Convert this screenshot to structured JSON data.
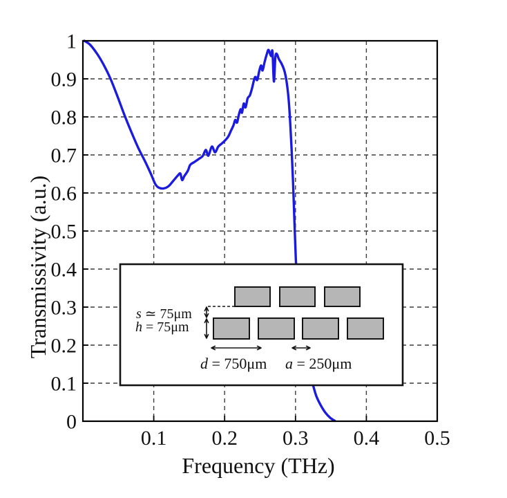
{
  "background": "#ffffff",
  "colors": {
    "curve": "#1b1be0",
    "grid": "#3c3c3c",
    "axis": "#000000",
    "inset_fill": "#ffffff",
    "inset_bar_fill": "#b6b6b6",
    "inset_stroke": "#141414"
  },
  "axes": {
    "x": {
      "label": "Frequency (THz)",
      "min": 0,
      "max": 0.5,
      "ticks": [
        {
          "v": 0.1,
          "label": "0.1"
        },
        {
          "v": 0.2,
          "label": "0.2"
        },
        {
          "v": 0.3,
          "label": "0.3"
        },
        {
          "v": 0.4,
          "label": "0.4"
        },
        {
          "v": 0.5,
          "label": "0.5"
        }
      ],
      "gridlines": [
        0.1,
        0.2,
        0.3,
        0.4
      ]
    },
    "y": {
      "label": "Transmissivity (a.u.)",
      "min": 0,
      "max": 1,
      "ticks": [
        {
          "v": 0,
          "label": "0"
        },
        {
          "v": 0.1,
          "label": "0.1"
        },
        {
          "v": 0.2,
          "label": "0.2"
        },
        {
          "v": 0.3,
          "label": "0.3"
        },
        {
          "v": 0.4,
          "label": "0.4"
        },
        {
          "v": 0.5,
          "label": "0.5"
        },
        {
          "v": 0.6,
          "label": "0.6"
        },
        {
          "v": 0.7,
          "label": "0.7"
        },
        {
          "v": 0.8,
          "label": "0.8"
        },
        {
          "v": 0.9,
          "label": "0.9"
        },
        {
          "v": 1,
          "label": "1"
        }
      ],
      "gridlines": [
        0.1,
        0.2,
        0.3,
        0.4,
        0.5,
        0.6,
        0.7,
        0.8,
        0.9
      ]
    }
  },
  "chart_data": {
    "type": "line",
    "title": "",
    "xlabel": "Frequency (THz)",
    "ylabel": "Transmissivity (a.u.)",
    "xlim": [
      0,
      0.5
    ],
    "ylim": [
      0,
      1
    ],
    "grid": "dashed",
    "legend": "none",
    "series": [
      {
        "name": "transmissivity",
        "color": "#1b1be0",
        "points": [
          [
            0.002,
            1.0
          ],
          [
            0.01,
            0.99
          ],
          [
            0.02,
            0.966
          ],
          [
            0.029,
            0.938
          ],
          [
            0.039,
            0.9
          ],
          [
            0.049,
            0.853
          ],
          [
            0.058,
            0.808
          ],
          [
            0.068,
            0.762
          ],
          [
            0.078,
            0.719
          ],
          [
            0.088,
            0.682
          ],
          [
            0.096,
            0.65
          ],
          [
            0.102,
            0.624
          ],
          [
            0.107,
            0.614
          ],
          [
            0.114,
            0.612
          ],
          [
            0.121,
            0.618
          ],
          [
            0.128,
            0.633
          ],
          [
            0.134,
            0.646
          ],
          [
            0.1375,
            0.651
          ],
          [
            0.14,
            0.634
          ],
          [
            0.143,
            0.644
          ],
          [
            0.148,
            0.658
          ],
          [
            0.1515,
            0.674
          ],
          [
            0.157,
            0.681
          ],
          [
            0.164,
            0.69
          ],
          [
            0.169,
            0.697
          ],
          [
            0.1735,
            0.713
          ],
          [
            0.177,
            0.698
          ],
          [
            0.182,
            0.722
          ],
          [
            0.1865,
            0.707
          ],
          [
            0.191,
            0.722
          ],
          [
            0.196,
            0.73
          ],
          [
            0.2,
            0.737
          ],
          [
            0.205,
            0.748
          ],
          [
            0.209,
            0.764
          ],
          [
            0.2125,
            0.778
          ],
          [
            0.215,
            0.792
          ],
          [
            0.2175,
            0.785
          ],
          [
            0.22,
            0.805
          ],
          [
            0.2225,
            0.82
          ],
          [
            0.2245,
            0.811
          ],
          [
            0.227,
            0.835
          ],
          [
            0.2295,
            0.825
          ],
          [
            0.2325,
            0.849
          ],
          [
            0.2355,
            0.856
          ],
          [
            0.2385,
            0.874
          ],
          [
            0.2415,
            0.897
          ],
          [
            0.2435,
            0.905
          ],
          [
            0.246,
            0.897
          ],
          [
            0.249,
            0.922
          ],
          [
            0.2515,
            0.935
          ],
          [
            0.2535,
            0.922
          ],
          [
            0.2565,
            0.945
          ],
          [
            0.2595,
            0.965
          ],
          [
            0.262,
            0.976
          ],
          [
            0.2655,
            0.96
          ],
          [
            0.2675,
            0.972
          ],
          [
            0.2695,
            0.893
          ],
          [
            0.2715,
            0.955
          ],
          [
            0.2735,
            0.966
          ],
          [
            0.2765,
            0.952
          ],
          [
            0.28,
            0.941
          ],
          [
            0.2835,
            0.926
          ],
          [
            0.286,
            0.908
          ],
          [
            0.2885,
            0.878
          ],
          [
            0.2905,
            0.842
          ],
          [
            0.2925,
            0.786
          ],
          [
            0.2945,
            0.715
          ],
          [
            0.2965,
            0.63
          ],
          [
            0.2985,
            0.525
          ],
          [
            0.3005,
            0.425
          ],
          [
            0.3025,
            0.363
          ],
          [
            0.3055,
            0.298
          ],
          [
            0.309,
            0.242
          ],
          [
            0.3135,
            0.19
          ],
          [
            0.318,
            0.146
          ],
          [
            0.3235,
            0.104
          ],
          [
            0.329,
            0.068
          ],
          [
            0.335,
            0.044
          ],
          [
            0.342,
            0.023
          ],
          [
            0.349,
            0.009
          ],
          [
            0.3555,
            0.001
          ]
        ]
      }
    ]
  },
  "inset": {
    "top_row_count": 3,
    "bottom_row_count": 4,
    "labels": {
      "s": {
        "var": "s",
        "rel": "≃",
        "value": "75μm"
      },
      "h": {
        "var": "h",
        "rel": "=",
        "value": "75μm"
      },
      "d": {
        "var": "d",
        "rel": "=",
        "value": "750μm"
      },
      "a": {
        "var": "a",
        "rel": "=",
        "value": "250μm"
      }
    }
  }
}
